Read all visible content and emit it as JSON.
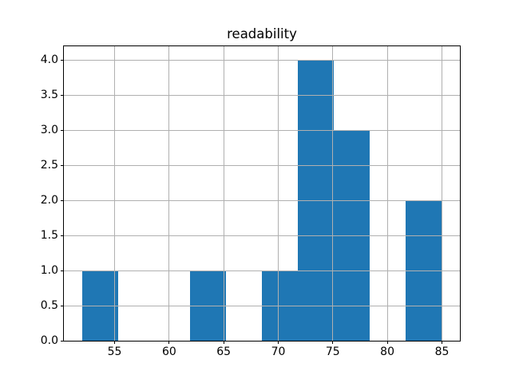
{
  "figure": {
    "background": "#ffffff"
  },
  "chart_data": {
    "type": "bar",
    "subtype": "histogram",
    "title": "readability",
    "xlabel": "",
    "ylabel": "",
    "bin_edges": [
      52.0,
      55.3,
      58.6,
      61.9,
      65.2,
      68.5,
      71.8,
      75.1,
      78.4,
      81.7,
      85.0
    ],
    "counts": [
      1,
      0,
      0,
      1,
      0,
      1,
      4,
      3,
      0,
      2
    ],
    "xlim": [
      50.35,
      86.65
    ],
    "ylim": [
      0,
      4.2
    ],
    "xticks": [
      55,
      60,
      65,
      70,
      75,
      80,
      85
    ],
    "xtick_labels": [
      "55",
      "60",
      "65",
      "70",
      "75",
      "80",
      "85"
    ],
    "yticks": [
      0,
      0.5,
      1,
      1.5,
      2,
      2.5,
      3,
      3.5,
      4
    ],
    "ytick_labels": [
      "0.0",
      "0.5",
      "1.0",
      "1.5",
      "2.0",
      "2.5",
      "3.0",
      "3.5",
      "4.0"
    ],
    "grid": true,
    "grid_position": "above-bars",
    "legend": "none",
    "colors": {
      "bar": "#1f77b4",
      "grid": "#b0b0b0",
      "spine": "#000000",
      "text": "#000000",
      "background": "#ffffff"
    }
  }
}
